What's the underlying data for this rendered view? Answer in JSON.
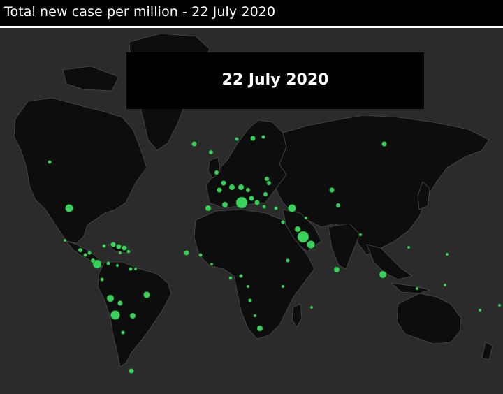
{
  "header": {
    "title": "Total new case per million - 22 July 2020"
  },
  "banner": {
    "date_label": "22 July 2020"
  },
  "colors": {
    "background": "#2b2b2b",
    "land": "#0d0d0d",
    "border": "#4a4a4a",
    "marker": "#3ad35a",
    "marker_stroke": "#1f7a33",
    "banner": "#000000"
  },
  "legend": "none"
}
